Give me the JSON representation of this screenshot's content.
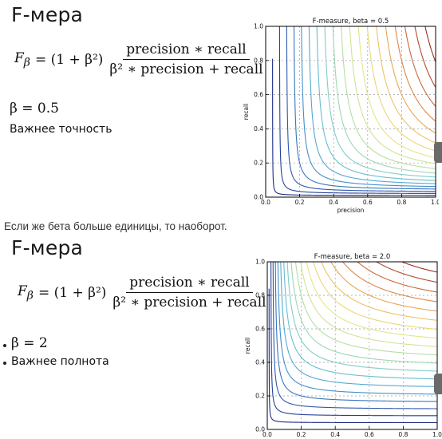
{
  "caption": "Если же бета больше единицы, то наоборот.",
  "slides": [
    {
      "title": "F-мера",
      "formula": {
        "lhs": "F",
        "lhs_sub": "β",
        "eq": "= (1 + β²)",
        "numerator": "precision ∗ recall",
        "denominator": "β² ∗ precision + recall"
      },
      "beta_text": "β = 0.5",
      "note": "Важнее точность"
    },
    {
      "title": "F-мера",
      "formula": {
        "lhs": "F",
        "lhs_sub": "β",
        "eq": "= (1 + β²)",
        "numerator": "precision ∗ recall",
        "denominator": "β² ∗ precision + recall"
      },
      "beta_text": "β = 2",
      "note": "Важнее полнота"
    }
  ],
  "chart_data": [
    {
      "type": "line",
      "title": "F-measure, beta = 0.5",
      "xlabel": "precision",
      "ylabel": "recall",
      "xlim": [
        0.0,
        1.0
      ],
      "ylim": [
        0.0,
        1.0
      ],
      "xticks": [
        "0.0",
        "0.2",
        "0.4",
        "0.6",
        "0.8",
        "1.0"
      ],
      "yticks": [
        "0.0",
        "0.2",
        "0.4",
        "0.6",
        "0.8",
        "1.0"
      ],
      "beta": 0.5,
      "grid": true,
      "contour_levels": [
        0.05,
        0.1,
        0.15,
        0.2,
        0.25,
        0.3,
        0.35,
        0.4,
        0.45,
        0.5,
        0.55,
        0.6,
        0.65,
        0.7,
        0.75,
        0.8,
        0.85,
        0.9,
        0.95
      ],
      "colormap": [
        "#1b2a86",
        "#2d52a8",
        "#3a86c8",
        "#5ab3d4",
        "#88d0c4",
        "#b4e0a0",
        "#e3e88c",
        "#f1cd6a",
        "#e99a4c",
        "#c9613a",
        "#9b2f23"
      ]
    },
    {
      "type": "line",
      "title": "F-measure, beta = 2.0",
      "xlabel": "",
      "ylabel": "recall",
      "xlim": [
        0.0,
        1.0
      ],
      "ylim": [
        0.0,
        1.0
      ],
      "xticks": [
        "0.0",
        "0.2",
        "0.4",
        "0.6",
        "0.8",
        "1.0"
      ],
      "yticks": [
        "0.0",
        "0.2",
        "0.4",
        "0.6",
        "0.8",
        "1.0"
      ],
      "beta": 2.0,
      "grid": true,
      "contour_levels": [
        0.05,
        0.1,
        0.15,
        0.2,
        0.25,
        0.3,
        0.35,
        0.4,
        0.45,
        0.5,
        0.55,
        0.6,
        0.65,
        0.7,
        0.75,
        0.8,
        0.85,
        0.9,
        0.95
      ],
      "colormap": [
        "#1b2a86",
        "#2d52a8",
        "#3a86c8",
        "#5ab3d4",
        "#88d0c4",
        "#b4e0a0",
        "#e3e88c",
        "#f1cd6a",
        "#e99a4c",
        "#c9613a",
        "#9b2f23"
      ]
    }
  ]
}
